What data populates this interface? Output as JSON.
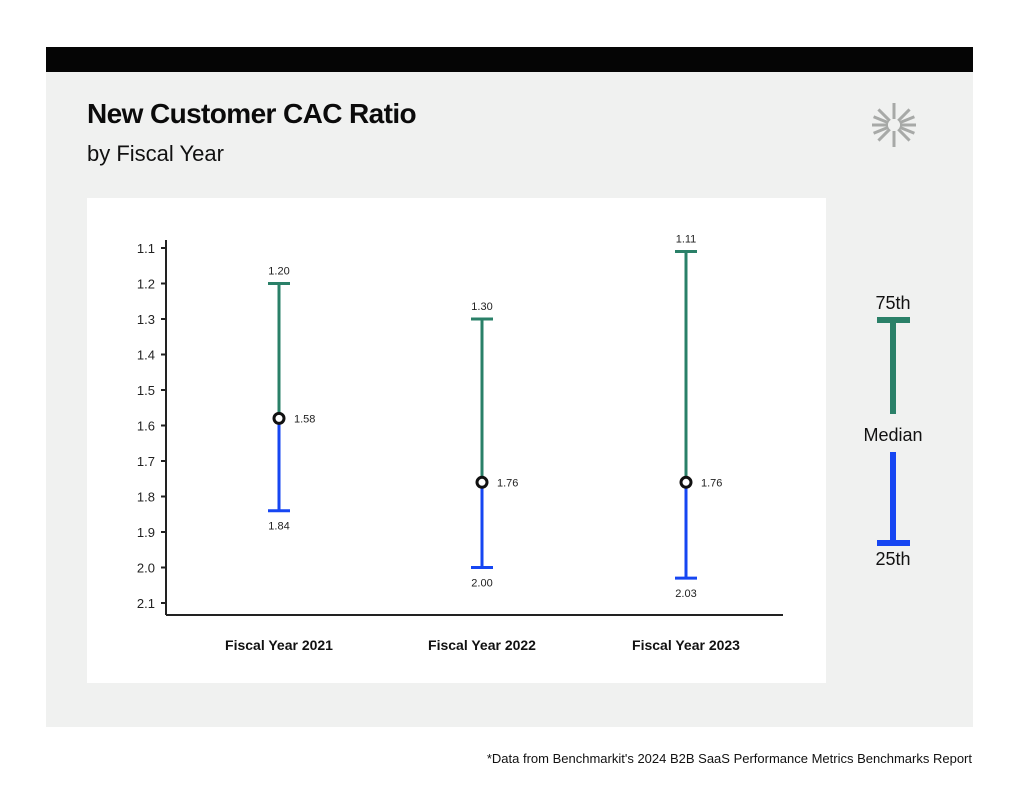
{
  "header": {
    "title": "New Customer CAC Ratio",
    "subtitle": "by Fiscal Year"
  },
  "logo": {
    "icon": "asterisk-burst-logo-icon",
    "color": "#a7a9a7"
  },
  "colors": {
    "upper": "#2a8068",
    "lower": "#1646f2",
    "axis": "#222222",
    "median_fill": "#ffffff"
  },
  "legend": {
    "upper_label": "75th",
    "median_label": "Median",
    "lower_label": "25th"
  },
  "footnote": "*Data from Benchmarkit's 2024 B2B SaaS Performance Metrics Benchmarks Report",
  "chart_data": {
    "type": "range-dot",
    "title": "New Customer CAC Ratio",
    "subtitle": "by Fiscal Year",
    "y_inverted": true,
    "ylim": [
      1.1,
      2.1
    ],
    "yticks": [
      "1.1",
      "1.2",
      "1.3",
      "1.4",
      "1.5",
      "1.6",
      "1.7",
      "1.8",
      "1.9",
      "2.0",
      "2.1"
    ],
    "categories": [
      "Fiscal Year 2021",
      "Fiscal Year 2022",
      "Fiscal Year 2023"
    ],
    "series": [
      {
        "name": "75th",
        "values": [
          1.2,
          1.3,
          1.11
        ],
        "labels": [
          "1.20",
          "1.30",
          "1.11"
        ]
      },
      {
        "name": "Median",
        "values": [
          1.58,
          1.76,
          1.76
        ],
        "labels": [
          "1.58",
          "1.76",
          "1.76"
        ]
      },
      {
        "name": "25th",
        "values": [
          1.84,
          2.0,
          2.03
        ],
        "labels": [
          "1.84",
          "2.00",
          "2.03"
        ]
      }
    ]
  }
}
